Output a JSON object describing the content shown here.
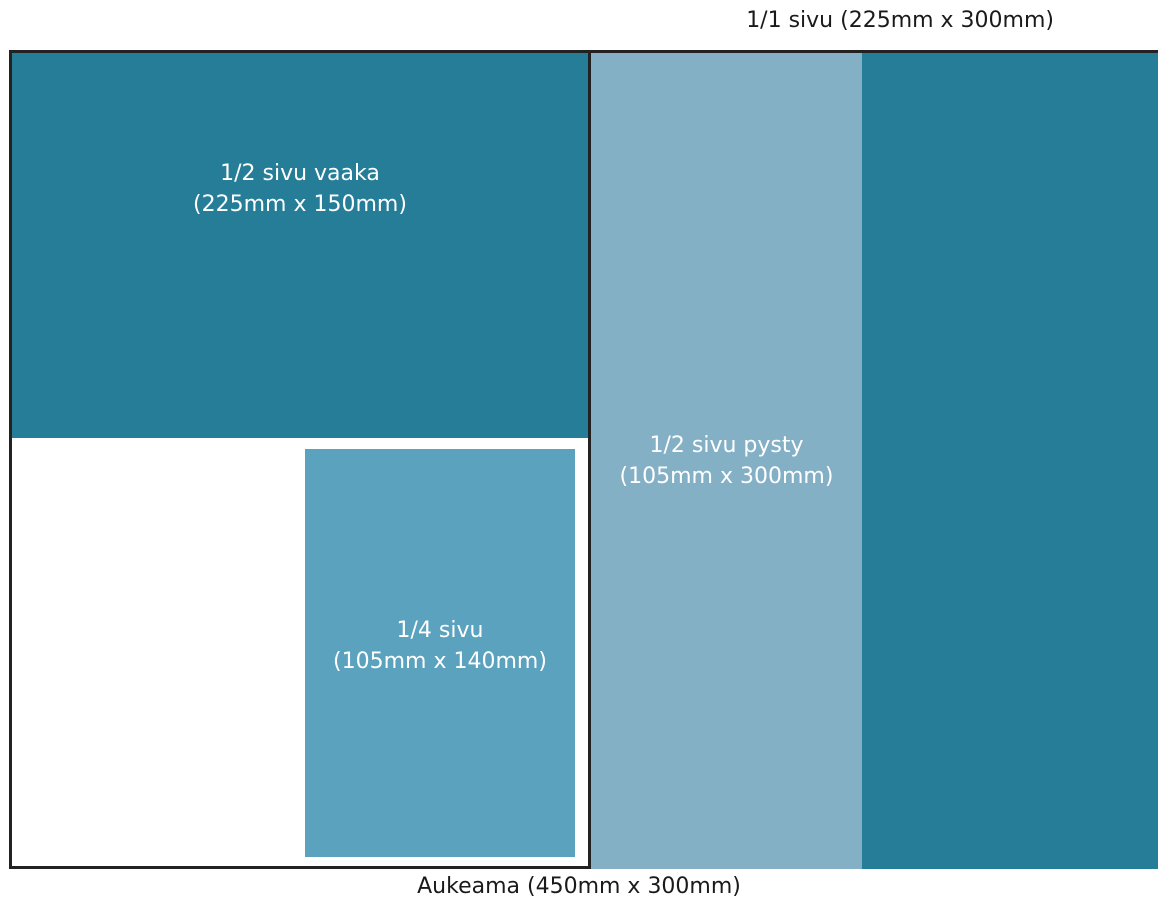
{
  "labels": {
    "full_page": "1/1 sivu (225mm x 300mm)",
    "spread": "Aukeama (450mm x 300mm)"
  },
  "blocks": {
    "half_horizontal": {
      "line1": "1/2 sivu vaaka",
      "line2": "(225mm x 150mm)",
      "color": "#267d98"
    },
    "quarter": {
      "line1": "1/4 sivu",
      "line2": "(105mm x 140mm)",
      "color": "#5ba2bf"
    },
    "half_vertical": {
      "line1": "1/2 sivu pysty",
      "line2": "(105mm x 300mm)",
      "color": "#84b0c6"
    },
    "full_page": {
      "color": "#267d98"
    }
  }
}
